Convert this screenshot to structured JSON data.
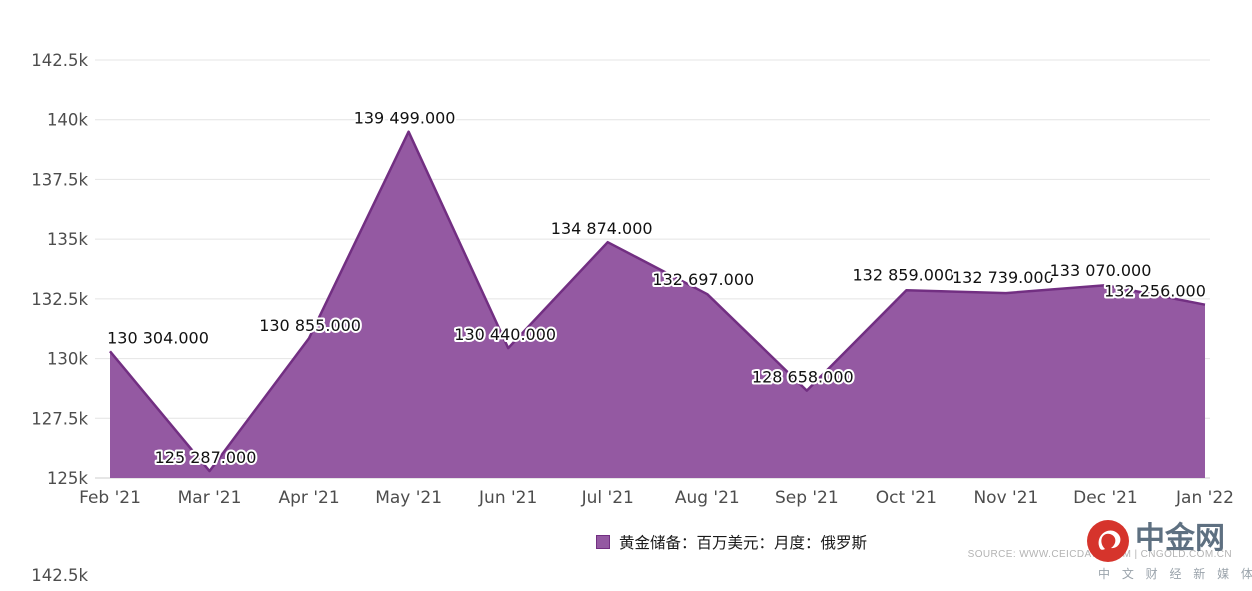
{
  "chart_data": {
    "type": "area",
    "categories": [
      "Feb '21",
      "Mar '21",
      "Apr '21",
      "May '21",
      "Jun '21",
      "Jul '21",
      "Aug '21",
      "Sep '21",
      "Oct '21",
      "Nov '21",
      "Dec '21",
      "Jan '22"
    ],
    "values": [
      130304,
      125287,
      130855,
      139499,
      130440,
      134874,
      132697,
      128658,
      132859,
      132739,
      133070,
      132256
    ],
    "value_labels": [
      "130 304.000",
      "125 287.000",
      "130 855.000",
      "139 499.000",
      "130 440.000",
      "134 874.000",
      "132 697.000",
      "128 658.000",
      "132 859.000",
      "132 739.000",
      "133 070.000",
      "132 256.000"
    ],
    "y_ticks": [
      "142.5k",
      "140k",
      "137.5k",
      "135k",
      "132.5k",
      "130k",
      "127.5k",
      "125k"
    ],
    "ylim": [
      125000,
      142500
    ],
    "grid": true,
    "legend_position": "bottom",
    "legend": "黄金储备：百万美元：月度：俄罗斯",
    "xlabel": "",
    "ylabel": "",
    "title": ""
  },
  "colors": {
    "area_fill": "#9459A2",
    "area_stroke": "#722F82",
    "grid_line": "#e4e4e4",
    "axis_line": "#cccccc",
    "axis_text": "#4d4d4d",
    "logo_red": "#d6342c"
  },
  "footer": {
    "source": "SOURCE: WWW.CEICDATA.COM | CNGOLD.COM.CN",
    "watermark": {
      "brand": "中金网",
      "tagline": "中 文 财 经 新 媒 体"
    }
  },
  "partial_next_chart": {
    "tick": "142.5k"
  }
}
